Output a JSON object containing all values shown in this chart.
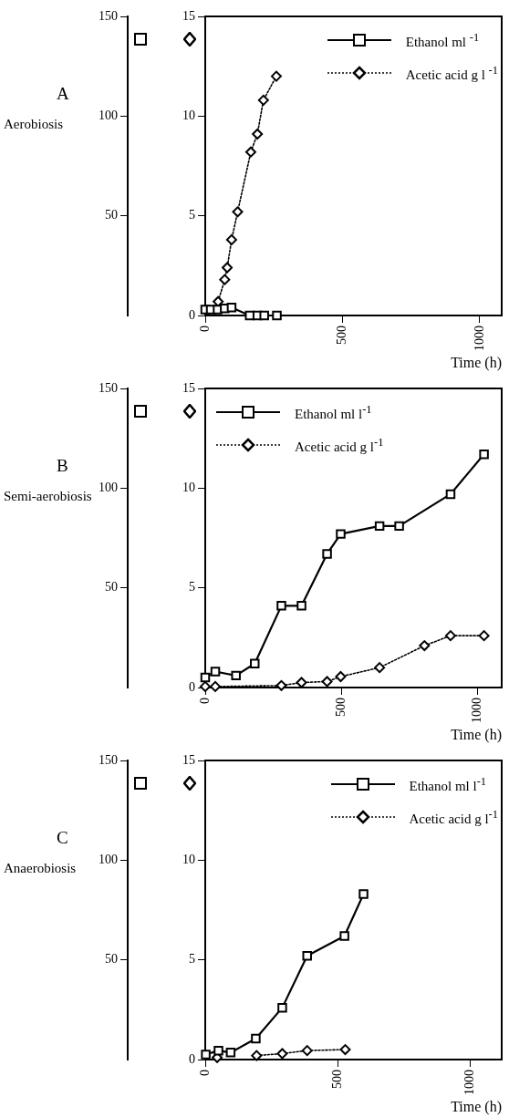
{
  "chart_data": [
    {
      "type": "line",
      "title": "A",
      "subtitle": "Aerobiosis",
      "xlabel": "Time (h)",
      "xlim": [
        0,
        1080
      ],
      "xticks": [
        0,
        500,
        1000
      ],
      "ylim": [
        0,
        15
      ],
      "yticks": [
        0,
        5,
        10,
        15
      ],
      "y2lim": [
        0,
        150
      ],
      "y2ticks": [
        50,
        100,
        150
      ],
      "legend": "top right",
      "grid": false,
      "series": [
        {
          "name": "Ethanol ml $^{-1}$",
          "color": "#000000",
          "marker": "square",
          "line_style": "solid",
          "x": [
            0,
            20,
            45,
            71,
            96,
            162,
            190,
            215,
            261
          ],
          "values": [
            0.3,
            0.3,
            0.3,
            0.35,
            0.4,
            0,
            0,
            0,
            0
          ]
        },
        {
          "name": "Acetic acid g l $^{-1}$",
          "color": "#000000",
          "marker": "diamond",
          "line_style": "dotted",
          "x": [
            47,
            71,
            80,
            96,
            118,
            166,
            190,
            212,
            259
          ],
          "values": [
            0.7,
            1.8,
            2.4,
            3.8,
            5.2,
            8.2,
            9.1,
            10.8,
            12.0
          ]
        }
      ]
    },
    {
      "type": "line",
      "title": "B",
      "subtitle": "Semi-aerobiosis",
      "xlabel": "Time (h)",
      "xlim": [
        0,
        1090
      ],
      "xticks": [
        0,
        500,
        1000
      ],
      "ylim": [
        0,
        15
      ],
      "yticks": [
        0,
        5,
        10,
        15
      ],
      "y2lim": [
        0,
        150
      ],
      "y2ticks": [
        50,
        100,
        150
      ],
      "legend": "top left",
      "grid": false,
      "series": [
        {
          "name": "Ethanol ml l$^{-1}$",
          "color": "#000000",
          "marker": "square",
          "line_style": "solid",
          "x": [
            0,
            37,
            113,
            182,
            280,
            354,
            448,
            498,
            641,
            713,
            902,
            1025
          ],
          "values": [
            0.5,
            0.8,
            0.6,
            1.2,
            4.1,
            4.1,
            6.7,
            7.7,
            8.1,
            8.1,
            9.7,
            11.7
          ]
        },
        {
          "name": "Acetic acid g l$^{-1}$",
          "color": "#000000",
          "marker": "diamond",
          "line_style": "dotted",
          "x": [
            0,
            37,
            280,
            354,
            448,
            498,
            641,
            806,
            902,
            1025
          ],
          "values": [
            0.05,
            0.05,
            0.1,
            0.25,
            0.3,
            0.55,
            1.0,
            2.1,
            2.6,
            2.6
          ]
        }
      ]
    },
    {
      "type": "line",
      "title": "C",
      "subtitle": "Anaerobiosis",
      "xlabel": "Time (h)",
      "xlim": [
        0,
        1120
      ],
      "xticks": [
        0,
        500,
        1000
      ],
      "ylim": [
        0,
        15
      ],
      "yticks": [
        0,
        5,
        10,
        15
      ],
      "y2lim": [
        0,
        150
      ],
      "y2ticks": [
        50,
        100,
        150
      ],
      "legend": "top right",
      "grid": false,
      "series": [
        {
          "name": "Ethanol ml l$^{-1}$",
          "color": "#000000",
          "marker": "square",
          "line_style": "solid",
          "x": [
            2,
            50,
            96,
            191,
            291,
            385,
            526,
            598
          ],
          "values": [
            0.25,
            0.45,
            0.35,
            1.05,
            2.6,
            5.2,
            6.2,
            8.3
          ]
        },
        {
          "name": "Acetic acid g l$^{-1}$",
          "color": "#000000",
          "marker": "diamond",
          "line_style": "dotted",
          "x": [
            45,
            96,
            194,
            291,
            385,
            529
          ],
          "values": [
            0.1,
            null,
            0.2,
            0.3,
            0.45,
            0.5
          ]
        }
      ]
    }
  ]
}
